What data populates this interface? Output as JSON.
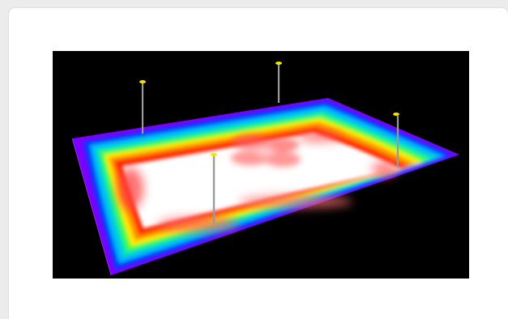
{
  "image": {
    "description_icon": "lighting-illuminance-heatmap-image",
    "background_color": "#000000",
    "card_color": "#ffffff",
    "page_color": "#ececec",
    "contour_colors": [
      "#7b00ff",
      "#0040ff",
      "#00b4ff",
      "#00e0c0",
      "#40ff40",
      "#c8ff00",
      "#ffe600",
      "#ff8c00",
      "#ff2000",
      "#ff8080",
      "#ffffff"
    ],
    "pole_color": "#9a9a9a",
    "luminaire_color": "#f5e400"
  }
}
